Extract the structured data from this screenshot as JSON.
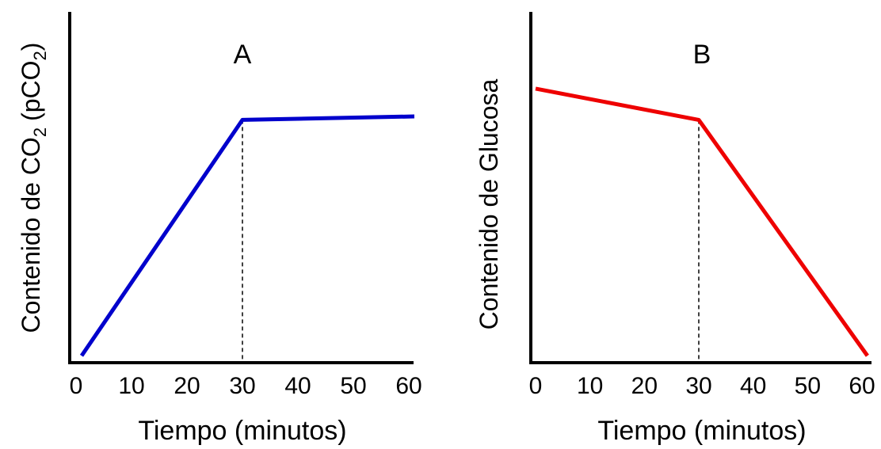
{
  "chart_data": [
    {
      "type": "line",
      "title": "A",
      "xlabel": "Tiempo (minutos)",
      "ylabel_main": "Contenido de CO",
      "ylabel_paren": "(pCO",
      "ylabel_sub": "2",
      "ylabel_close": ")",
      "xticks": [
        0,
        10,
        20,
        30,
        40,
        50,
        60
      ],
      "xtick_labels": [
        "0",
        "10",
        "20",
        "30",
        "40",
        "50",
        "60"
      ],
      "xlim": [
        0,
        60
      ],
      "ylim": [
        0,
        1
      ],
      "y_ticks_shown": false,
      "grid": false,
      "line_color": "#0000cc",
      "series": [
        {
          "x": [
            1,
            30,
            61
          ],
          "y": [
            0.02,
            0.7,
            0.71
          ]
        }
      ],
      "guide_line": {
        "x": 30,
        "style": "dashed"
      }
    },
    {
      "type": "line",
      "title": "B",
      "xlabel": "Tiempo (minutos)",
      "ylabel": "Contenido de Glucosa",
      "xticks": [
        0,
        10,
        20,
        30,
        40,
        50,
        60
      ],
      "xtick_labels": [
        "0",
        "10",
        "20",
        "30",
        "40",
        "50",
        "60"
      ],
      "xlim": [
        0,
        60
      ],
      "ylim": [
        0,
        1
      ],
      "y_ticks_shown": false,
      "grid": false,
      "line_color": "#ee0000",
      "series": [
        {
          "x": [
            0,
            30,
            61
          ],
          "y": [
            0.79,
            0.7,
            0.02
          ]
        }
      ],
      "guide_line": {
        "x": 30,
        "style": "dashed"
      }
    }
  ]
}
